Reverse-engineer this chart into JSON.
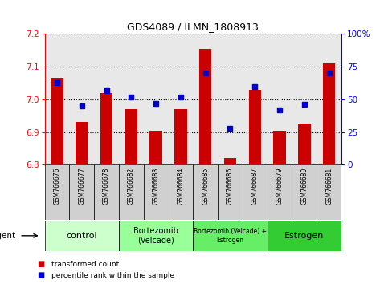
{
  "title": "GDS4089 / ILMN_1808913",
  "samples": [
    "GSM766676",
    "GSM766677",
    "GSM766678",
    "GSM766682",
    "GSM766683",
    "GSM766684",
    "GSM766685",
    "GSM766686",
    "GSM766687",
    "GSM766679",
    "GSM766680",
    "GSM766681"
  ],
  "bar_values": [
    7.065,
    6.93,
    7.02,
    6.97,
    6.905,
    6.97,
    7.155,
    6.82,
    7.03,
    6.905,
    6.925,
    7.11
  ],
  "percentile_values": [
    63,
    45,
    57,
    52,
    47,
    52,
    70,
    28,
    60,
    42,
    46,
    70
  ],
  "bar_color": "#cc0000",
  "dot_color": "#0000cc",
  "ylim_left": [
    6.8,
    7.2
  ],
  "ylim_right": [
    0,
    100
  ],
  "yticks_left": [
    6.8,
    6.9,
    7.0,
    7.1,
    7.2
  ],
  "yticks_right": [
    0,
    25,
    50,
    75,
    100
  ],
  "groups": [
    {
      "label": "control",
      "start": 0,
      "end": 3,
      "color": "#ccffcc",
      "fontsize": 8
    },
    {
      "label": "Bortezomib\n(Velcade)",
      "start": 3,
      "end": 6,
      "color": "#99ff99",
      "fontsize": 7
    },
    {
      "label": "Bortezomib (Velcade) +\nEstrogen",
      "start": 6,
      "end": 9,
      "color": "#66ee66",
      "fontsize": 5.5
    },
    {
      "label": "Estrogen",
      "start": 9,
      "end": 12,
      "color": "#33cc33",
      "fontsize": 8
    }
  ],
  "legend_items": [
    {
      "label": "transformed count",
      "color": "#cc0000"
    },
    {
      "label": "percentile rank within the sample",
      "color": "#0000cc"
    }
  ],
  "agent_label": "agent",
  "background_color": "#ffffff",
  "plot_bg_color": "#e8e8e8",
  "sample_bg_color": "#d0d0d0"
}
